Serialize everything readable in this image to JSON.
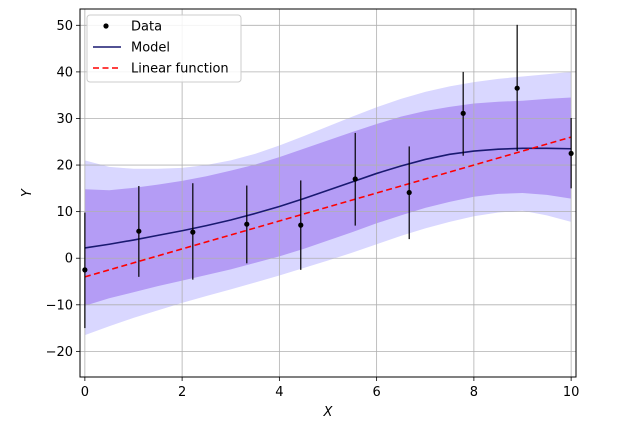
{
  "chart_data": {
    "type": "scatter",
    "xlabel": "X",
    "ylabel": "Y",
    "xlim": [
      -0.1,
      10.1
    ],
    "ylim": [
      -25.5,
      53.5
    ],
    "xticks": [
      0,
      2,
      4,
      6,
      8,
      10
    ],
    "yticks": [
      -20,
      -10,
      0,
      10,
      20,
      30,
      40,
      50
    ],
    "xtick_labels": [
      "0",
      "2",
      "4",
      "6",
      "8",
      "10"
    ],
    "ytick_labels": [
      "−20",
      "−10",
      "0",
      "10",
      "20",
      "30",
      "40",
      "50"
    ],
    "grid": true,
    "legend_position": "top-left",
    "colors": {
      "data": "#000000",
      "model": "#191970",
      "linear": "#ff0000",
      "band_inner": "#b49cf5",
      "band_outer": "#d9d7ff"
    },
    "series": [
      {
        "name": "Data",
        "kind": "scatter-errorbar",
        "x": [
          0,
          1.11,
          2.22,
          3.33,
          4.44,
          5.56,
          6.67,
          7.78,
          8.89,
          10
        ],
        "y": [
          -2.5,
          5.8,
          5.6,
          7.3,
          7.1,
          17.0,
          14.1,
          31.1,
          36.5,
          22.5
        ],
        "err_low": [
          12.5,
          9.8,
          10.2,
          8.4,
          9.6,
          10.0,
          10.0,
          9.1,
          13.5,
          7.5
        ],
        "err_high": [
          12.3,
          9.7,
          10.5,
          8.3,
          9.6,
          9.9,
          9.9,
          8.9,
          13.6,
          7.6
        ]
      },
      {
        "name": "Model",
        "kind": "line",
        "x": [
          0,
          0.5,
          1,
          1.5,
          2,
          2.5,
          3,
          3.5,
          4,
          4.5,
          5,
          5.5,
          6,
          6.5,
          7,
          7.5,
          8,
          8.5,
          9,
          9.5,
          10
        ],
        "y": [
          2.2,
          3.0,
          3.9,
          4.9,
          5.9,
          7.0,
          8.2,
          9.6,
          11.1,
          12.8,
          14.6,
          16.4,
          18.2,
          19.8,
          21.2,
          22.3,
          23.0,
          23.4,
          23.6,
          23.6,
          23.5
        ],
        "band_inner_low": [
          -10.2,
          -8.6,
          -7.3,
          -6.0,
          -4.8,
          -3.6,
          -2.4,
          -1.0,
          0.4,
          2.0,
          3.8,
          5.6,
          7.5,
          9.2,
          10.8,
          12.1,
          13.2,
          13.8,
          14.0,
          13.6,
          12.8
        ],
        "band_inner_high": [
          14.8,
          14.6,
          15.1,
          15.8,
          16.6,
          17.6,
          18.8,
          20.1,
          21.7,
          23.5,
          25.3,
          27.1,
          28.8,
          30.4,
          31.6,
          32.5,
          33.2,
          33.6,
          33.8,
          34.2,
          34.5
        ],
        "band_outer_low": [
          -16.5,
          -14.6,
          -12.8,
          -11.2,
          -9.6,
          -8.1,
          -6.7,
          -5.2,
          -3.7,
          -2.1,
          -0.5,
          1.2,
          3.0,
          4.8,
          6.4,
          7.8,
          9.0,
          9.8,
          10.2,
          9.2,
          7.8
        ],
        "band_outer_high": [
          21.0,
          19.6,
          19.2,
          19.2,
          19.4,
          20.0,
          21.0,
          22.4,
          24.2,
          26.2,
          28.3,
          30.4,
          32.4,
          34.2,
          35.7,
          36.9,
          37.8,
          38.5,
          39.0,
          39.5,
          40.0
        ]
      },
      {
        "name": "Linear function",
        "kind": "line-dashed",
        "x": [
          0,
          10
        ],
        "y": [
          -4,
          26
        ]
      }
    ],
    "legend": [
      "Data",
      "Model",
      "Linear function"
    ]
  }
}
